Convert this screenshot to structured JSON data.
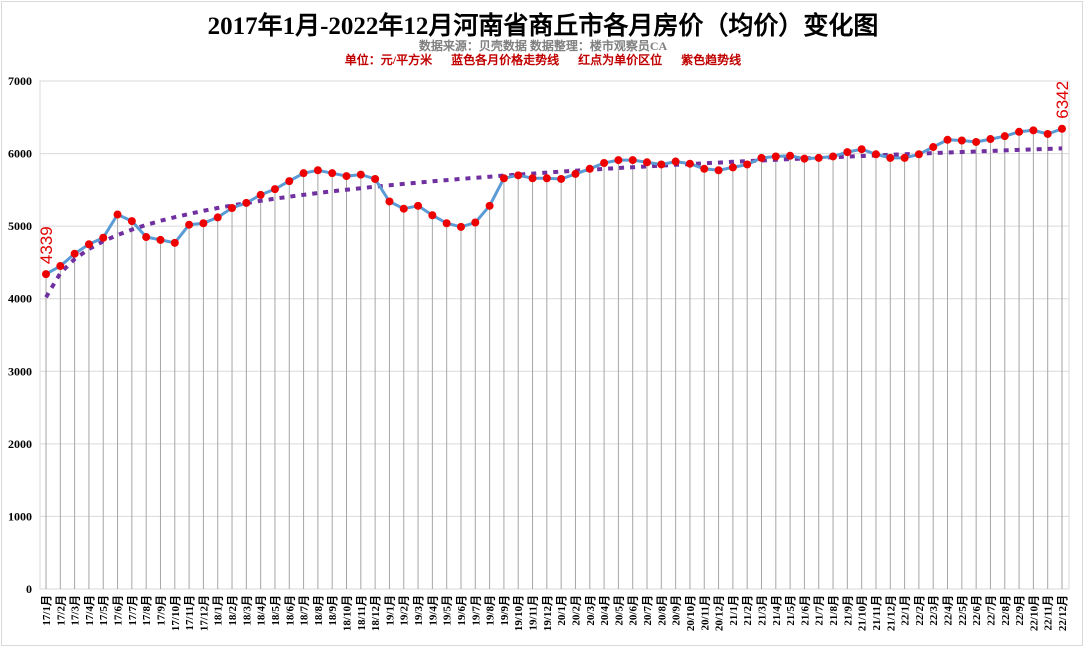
{
  "title": "2017年1月-2022年12月河南省商丘市各月房价（均价）变化图",
  "subtitle": "数据来源：贝壳数据     数据整理：楼市观察员CA",
  "notes": [
    "单位：元/平方米",
    "蓝色各月价格走势线",
    "红点为单价区位",
    "紫色趋势线"
  ],
  "colors": {
    "line": "#5b9bd5",
    "points": "#ee0000",
    "trend": "#7030a0",
    "grid": "#d9d9d9",
    "drop": "#a6a6a6",
    "label": "#e00000"
  },
  "annotations": {
    "first": "4339",
    "last": "6342"
  },
  "chart_data": {
    "type": "line",
    "title": "2017年1月-2022年12月河南省商丘市各月房价（均价）变化图",
    "xlabel": "",
    "ylabel": "元/平方米",
    "ylim": [
      0,
      7000
    ],
    "yticks": [
      0,
      1000,
      2000,
      3000,
      4000,
      5000,
      6000,
      7000
    ],
    "grid": true,
    "legend_position": "none",
    "categories": [
      "17/1月",
      "17/2月",
      "17/3月",
      "17/4月",
      "17/5月",
      "17/6月",
      "17/7月",
      "17/8月",
      "17/9月",
      "17/10月",
      "17/11月",
      "17/12月",
      "18/1月",
      "18/2月",
      "18/3月",
      "18/4月",
      "18/5月",
      "18/6月",
      "18/7月",
      "18/8月",
      "18/9月",
      "18/10月",
      "18/11月",
      "18/12月",
      "19/1月",
      "19/2月",
      "19/3月",
      "19/4月",
      "19/5月",
      "19/6月",
      "19/7月",
      "19/8月",
      "19/9月",
      "19/10月",
      "19/11月",
      "19/12月",
      "20/1月",
      "20/2月",
      "20/3月",
      "20/4月",
      "20/5月",
      "20/6月",
      "20/7月",
      "20/8月",
      "20/9月",
      "20/10月",
      "20/11月",
      "20/12月",
      "21/1月",
      "21/2月",
      "21/3月",
      "21/4月",
      "21/5月",
      "21/6月",
      "21/7月",
      "21/8月",
      "21/9月",
      "21/10月",
      "21/11月",
      "21/12月",
      "22/1月",
      "22/2月",
      "22/3月",
      "22/4月",
      "22/5月",
      "22/6月",
      "22/7月",
      "22/8月",
      "22/9月",
      "22/10月",
      "22/11月",
      "22/12月"
    ],
    "series": [
      {
        "name": "蓝色各月价格走势线",
        "values": [
          4339,
          4450,
          4620,
          4750,
          4840,
          5160,
          5070,
          4850,
          4810,
          4770,
          5020,
          5040,
          5120,
          5250,
          5320,
          5430,
          5510,
          5620,
          5730,
          5770,
          5730,
          5690,
          5710,
          5650,
          5340,
          5240,
          5280,
          5150,
          5040,
          4990,
          5050,
          5280,
          5660,
          5700,
          5660,
          5660,
          5650,
          5720,
          5790,
          5870,
          5910,
          5910,
          5880,
          5850,
          5890,
          5860,
          5790,
          5770,
          5810,
          5850,
          5940,
          5960,
          5970,
          5930,
          5940,
          5960,
          6020,
          6060,
          5990,
          5940,
          5940,
          5990,
          6090,
          6190,
          6180,
          6160,
          6200,
          6240,
          6300,
          6320,
          6270,
          6342
        ]
      },
      {
        "name": "紫色趋势线",
        "type": "trend",
        "values_approx": {
          "17/1月": 4010,
          "17/7月": 4960,
          "18/6月": 5420,
          "19/9月": 5700,
          "20/12月": 5870,
          "22/12月": 6060
        }
      }
    ],
    "annotations": [
      {
        "x": "17/1月",
        "text": "4339"
      },
      {
        "x": "22/12月",
        "text": "6342"
      }
    ]
  }
}
